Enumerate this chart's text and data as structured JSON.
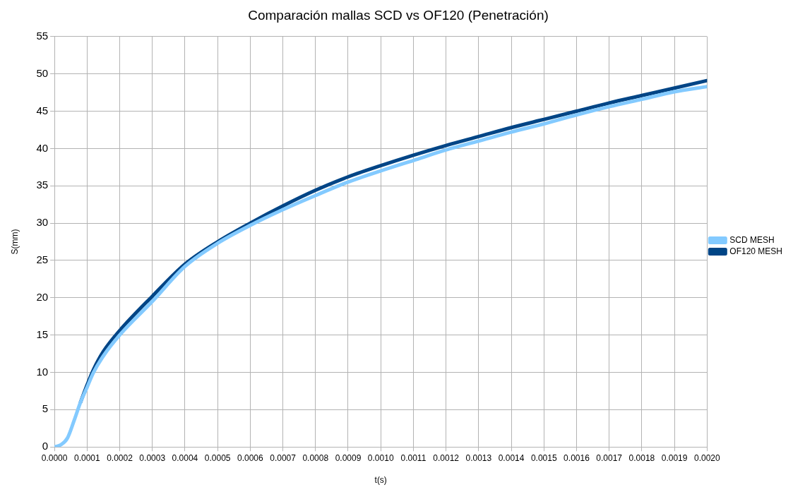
{
  "chart_data": {
    "type": "line",
    "title": "Comparación mallas SCD vs OF120 (Penetración)",
    "xlabel": "t(s)",
    "ylabel": "S(mm)",
    "xlim": [
      0,
      0.002
    ],
    "xticks": [
      {
        "value": 0,
        "label": "0.0000"
      },
      {
        "value": 0.0001,
        "label": "0.0001"
      },
      {
        "value": 0.0002,
        "label": "0.0002"
      },
      {
        "value": 0.0003,
        "label": "0.0003"
      },
      {
        "value": 0.0004,
        "label": "0.0004"
      },
      {
        "value": 0.0005,
        "label": "0.0005"
      },
      {
        "value": 0.0006,
        "label": "0.0006"
      },
      {
        "value": 0.0007,
        "label": "0.0007"
      },
      {
        "value": 0.0008,
        "label": "0.0008"
      },
      {
        "value": 0.0009,
        "label": "0.0009"
      },
      {
        "value": 0.001,
        "label": "0.0010"
      },
      {
        "value": 0.0011,
        "label": "0.0011"
      },
      {
        "value": 0.0012,
        "label": "0.0012"
      },
      {
        "value": 0.0013,
        "label": "0.0013"
      },
      {
        "value": 0.0014,
        "label": "0.0014"
      },
      {
        "value": 0.0015,
        "label": "0.0015"
      },
      {
        "value": 0.0016,
        "label": "0.0016"
      },
      {
        "value": 0.0017,
        "label": "0.0017"
      },
      {
        "value": 0.0018,
        "label": "0.0018"
      },
      {
        "value": 0.0019,
        "label": "0.0019"
      },
      {
        "value": 0.002,
        "label": "0.0020"
      }
    ],
    "ylim": [
      0,
      55
    ],
    "yticks": [
      0,
      5,
      10,
      15,
      20,
      25,
      30,
      35,
      40,
      45,
      50,
      55
    ],
    "grid": true,
    "legend": "right",
    "marker": "none",
    "line_style": "solid",
    "series": [
      {
        "name": "SCD MESH",
        "color": "#83caff",
        "x": [
          0,
          2e-05,
          4e-05,
          6e-05,
          8e-05,
          0.0001,
          0.00012,
          0.00015,
          0.0002,
          0.0003,
          0.0004,
          0.0005,
          0.0006,
          0.0007,
          0.0008,
          0.0009,
          0.001,
          0.0011,
          0.0012,
          0.0013,
          0.0014,
          0.0015,
          0.0016,
          0.0017,
          0.0018,
          0.0019,
          0.002
        ],
        "values": [
          0,
          0.3,
          1.2,
          3.5,
          6,
          8,
          10,
          12.2,
          15,
          19.5,
          24.2,
          27.3,
          29.7,
          31.8,
          33.7,
          35.5,
          37.0,
          38.4,
          39.8,
          41.0,
          42.2,
          43.3,
          44.5,
          45.6,
          46.6,
          47.6,
          48.3
        ]
      },
      {
        "name": "OF120 MESH",
        "color": "#004586",
        "x": [
          8e-05,
          0.0001,
          0.00012,
          0.00015,
          0.0002,
          0.0003,
          0.0004,
          0.0005,
          0.0006,
          0.0007,
          0.0008,
          0.0009,
          0.001,
          0.0011,
          0.0012,
          0.0013,
          0.0014,
          0.0015,
          0.0016,
          0.0017,
          0.0018,
          0.0019,
          0.002
        ],
        "values": [
          6,
          8.3,
          10.4,
          12.8,
          15.6,
          20.2,
          24.5,
          27.5,
          30.0,
          32.3,
          34.4,
          36.2,
          37.7,
          39.1,
          40.4,
          41.6,
          42.8,
          43.9,
          45.0,
          46.1,
          47.1,
          48.1,
          49.1
        ]
      }
    ]
  }
}
